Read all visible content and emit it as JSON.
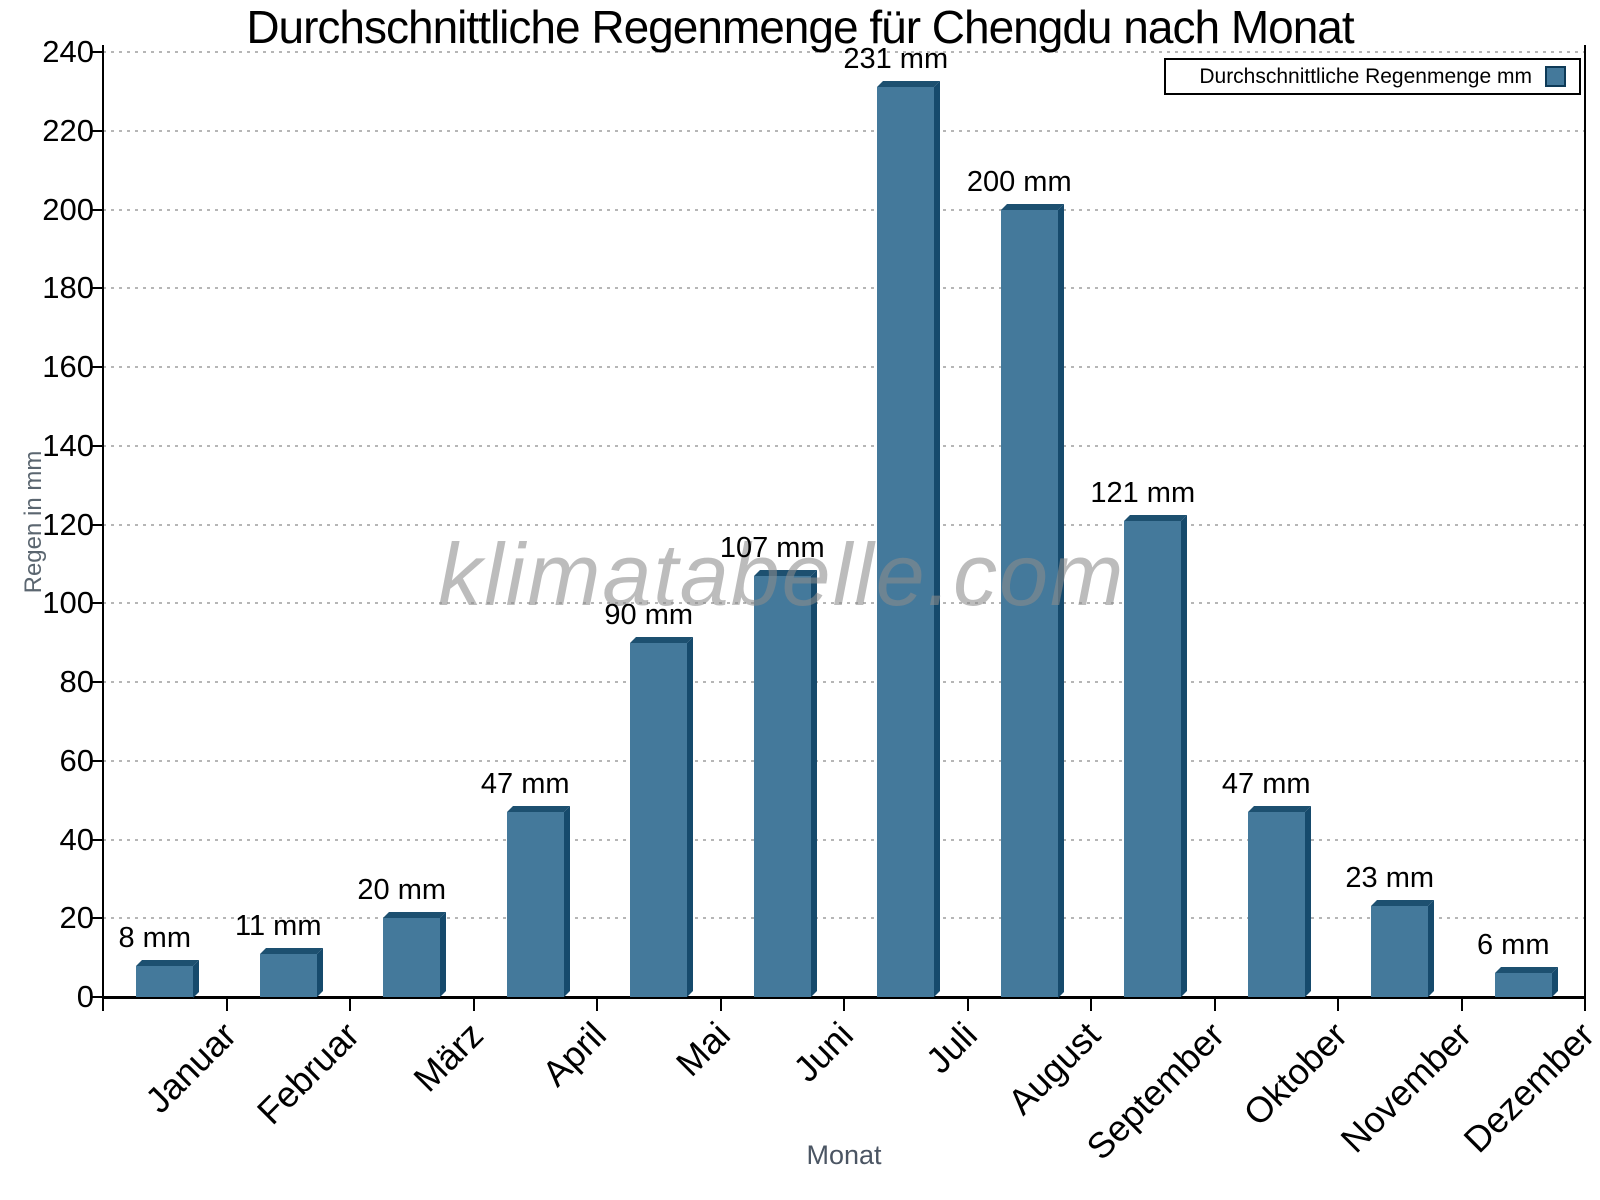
{
  "chart_data": {
    "type": "bar",
    "title": "Durchschnittliche Regenmenge für Chengdu nach Monat",
    "xlabel": "Monat",
    "ylabel": "Regen in mm",
    "categories": [
      "Januar",
      "Februar",
      "März",
      "April",
      "Mai",
      "Juni",
      "Juli",
      "August",
      "September",
      "Oktober",
      "November",
      "Dezember"
    ],
    "values": [
      8,
      11,
      20,
      47,
      90,
      107,
      231,
      200,
      121,
      47,
      23,
      6
    ],
    "value_suffix": " mm",
    "ylim": [
      0,
      240
    ],
    "ytick_step": 20,
    "grid": "dotted horizontal",
    "legend": {
      "label": "Durchschnittliche Regenmenge mm",
      "position": "top-right"
    },
    "watermark": "klimatabelle.com",
    "colors": {
      "bar_front": "#44799B",
      "bar_top": "#1d5070",
      "bar_side": "#164a6c",
      "grid_line": "#b6b6b6",
      "axis": "#000000",
      "axis_title_gray": "#5b6670"
    }
  }
}
